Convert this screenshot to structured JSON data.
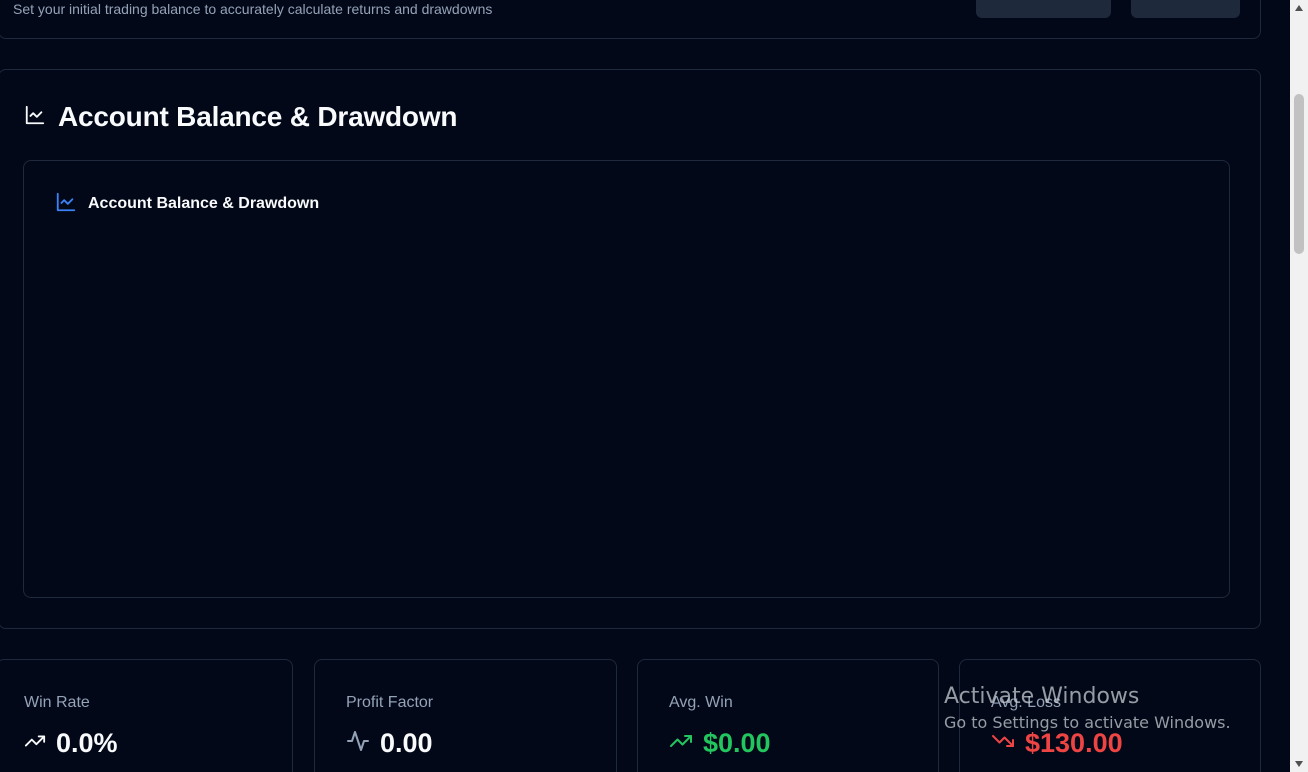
{
  "balance_section": {
    "description": "Set your initial trading balance to accurately calculate returns and drawdowns"
  },
  "main": {
    "title": "Account Balance & Drawdown",
    "chart_title": "Account Balance & Drawdown"
  },
  "stats": [
    {
      "label": "Win Rate",
      "value": "0.0%",
      "icon": "trending-up-icon",
      "color": "#f8fafc"
    },
    {
      "label": "Profit Factor",
      "value": "0.00",
      "icon": "activity-icon",
      "color": "#f8fafc"
    },
    {
      "label": "Avg. Win",
      "value": "$0.00",
      "icon": "trending-up-icon",
      "color": "#22c55e"
    },
    {
      "label": "Avg. Loss",
      "value": "$130.00",
      "icon": "trending-down-icon",
      "color": "#ef4444"
    }
  ],
  "watermark": {
    "title": "Activate Windows",
    "subtitle": "Go to Settings to activate Windows."
  },
  "colors": {
    "background": "#020817",
    "border": "#1e293b",
    "accent_blue": "#3b82f6",
    "positive": "#22c55e",
    "negative": "#ef4444"
  }
}
